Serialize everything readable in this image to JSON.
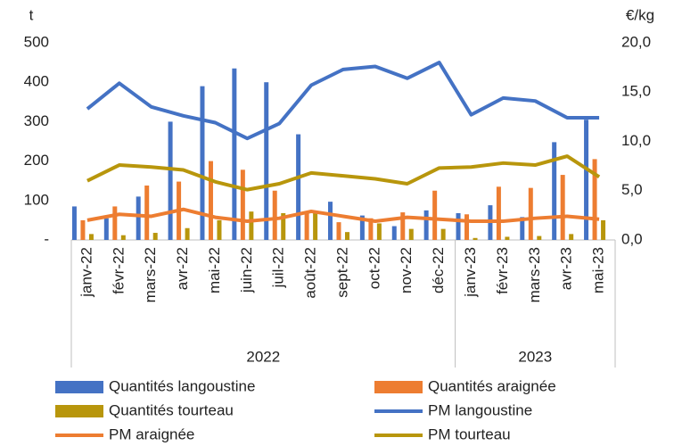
{
  "chart_data": {
    "type": "combo",
    "y_axis_label": "t",
    "y2_axis_label": "€/kg",
    "groups": [
      {
        "label": "2022",
        "categories": [
          "janv-22",
          "févr-22",
          "mars-22",
          "avr-22",
          "mai-22",
          "juin-22",
          "juil-22",
          "août-22",
          "sept-22",
          "oct-22",
          "nov-22",
          "déc-22"
        ]
      },
      {
        "label": "2023",
        "categories": [
          "janv-23",
          "févr-23",
          "mars-23",
          "avr-23",
          "mai-23"
        ]
      }
    ],
    "ylim": [
      0,
      500
    ],
    "yticks": [
      {
        "value": 0,
        "label": "-"
      },
      100,
      200,
      300,
      400,
      500
    ],
    "y2lim": [
      0,
      20
    ],
    "y2ticks": [
      {
        "value": 0,
        "label": "0,0"
      },
      {
        "value": 5,
        "label": "5,0"
      },
      {
        "value": 10,
        "label": "10,0"
      },
      {
        "value": 15,
        "label": "15,0"
      },
      {
        "value": 20,
        "label": "20,0"
      }
    ],
    "series": [
      {
        "name": "Quantités langoustine",
        "kind": "bar",
        "color": "#4472c4",
        "values": [
          85,
          55,
          110,
          300,
          390,
          435,
          400,
          268,
          97,
          62,
          35,
          75,
          68,
          88,
          58,
          248,
          305
        ]
      },
      {
        "name": "Quantités araignée",
        "kind": "bar",
        "color": "#ed7d31",
        "values": [
          50,
          85,
          138,
          148,
          200,
          178,
          125,
          70,
          45,
          55,
          70,
          125,
          65,
          135,
          132,
          165,
          205
        ]
      },
      {
        "name": "Quantités tourteau",
        "kind": "bar",
        "color": "#b8960c",
        "values": [
          15,
          12,
          18,
          30,
          50,
          72,
          68,
          70,
          20,
          42,
          28,
          28,
          5,
          8,
          10,
          15,
          50
        ]
      },
      {
        "name": "PM langoustine",
        "kind": "line",
        "axis": "y2",
        "color": "#4472c4",
        "values": [
          13.3,
          15.9,
          13.5,
          12.6,
          11.9,
          10.3,
          11.8,
          15.7,
          17.3,
          17.6,
          16.4,
          18.0,
          12.7,
          14.4,
          14.1,
          12.4,
          12.4
        ]
      },
      {
        "name": "PM araignée",
        "kind": "line",
        "axis": "y2",
        "color": "#ed7d31",
        "values": [
          2.0,
          2.6,
          2.4,
          3.1,
          2.3,
          1.9,
          2.2,
          2.9,
          2.4,
          1.9,
          2.3,
          2.1,
          1.9,
          1.9,
          2.2,
          2.4,
          2.1
        ]
      },
      {
        "name": "PM tourteau",
        "kind": "line",
        "axis": "y2",
        "color": "#b8960c",
        "values": [
          6.0,
          7.6,
          7.4,
          7.1,
          5.9,
          5.1,
          5.7,
          6.8,
          6.5,
          6.2,
          5.7,
          7.3,
          7.4,
          7.8,
          7.6,
          8.5,
          6.4
        ]
      }
    ]
  }
}
